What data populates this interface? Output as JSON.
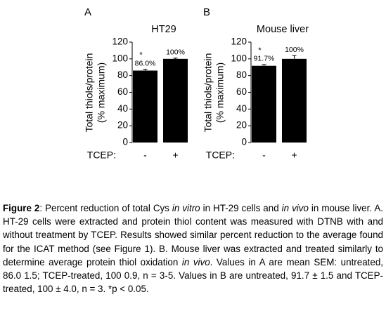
{
  "chart_data": [
    {
      "type": "bar",
      "panel": "A",
      "title": "HT29",
      "ylabel": [
        "Total thiols/protein",
        "(% maximum)"
      ],
      "x_axis_label": "TCEP:",
      "categories": [
        "-",
        "+"
      ],
      "values": [
        86.0,
        100
      ],
      "value_labels": [
        "86.0%",
        "100%"
      ],
      "errors": [
        1.5,
        0.9
      ],
      "significance_marks": [
        "*",
        null
      ],
      "color": "#000000",
      "ylim": [
        0,
        120
      ],
      "yticks": [
        0,
        20,
        40,
        60,
        80,
        100,
        120
      ]
    },
    {
      "type": "bar",
      "panel": "B",
      "title": "Mouse liver",
      "ylabel": [
        "Total thiols/protein",
        "(% maximum)"
      ],
      "x_axis_label": "TCEP:",
      "categories": [
        "-",
        "+"
      ],
      "values": [
        91.7,
        100
      ],
      "value_labels": [
        "91.7%",
        "100%"
      ],
      "errors": [
        1.5,
        4.0
      ],
      "significance_marks": [
        "*",
        null
      ],
      "color": "#000000",
      "ylim": [
        0,
        120
      ],
      "yticks": [
        0,
        20,
        40,
        60,
        80,
        100,
        120
      ]
    }
  ],
  "caption": [
    "Figure 2",
    ": Percent reduction of total Cys ",
    "in vitro",
    " in HT-29 cells and ",
    "in vivo",
    " in mouse liver.  A.  HT-29 cells were extracted and protein thiol content was measured with DTNB with and without treatment by TCEP.  Results showed similar percent reduction to the average found for the ICAT method (see Figure 1).  B.  Mouse liver was extracted and treated similarly to determine average protein thiol oxidation ",
    "in vivo",
    ".  Values in A are mean  SEM: untreated, 86.0  1.5; TCEP-treated, 100  0.9, n = 3-5.  Values in B are untreated, 91.7 ± 1.5 and TCEP-treated, 100  ± 4.0, n = 3.  *p < 0.05."
  ]
}
